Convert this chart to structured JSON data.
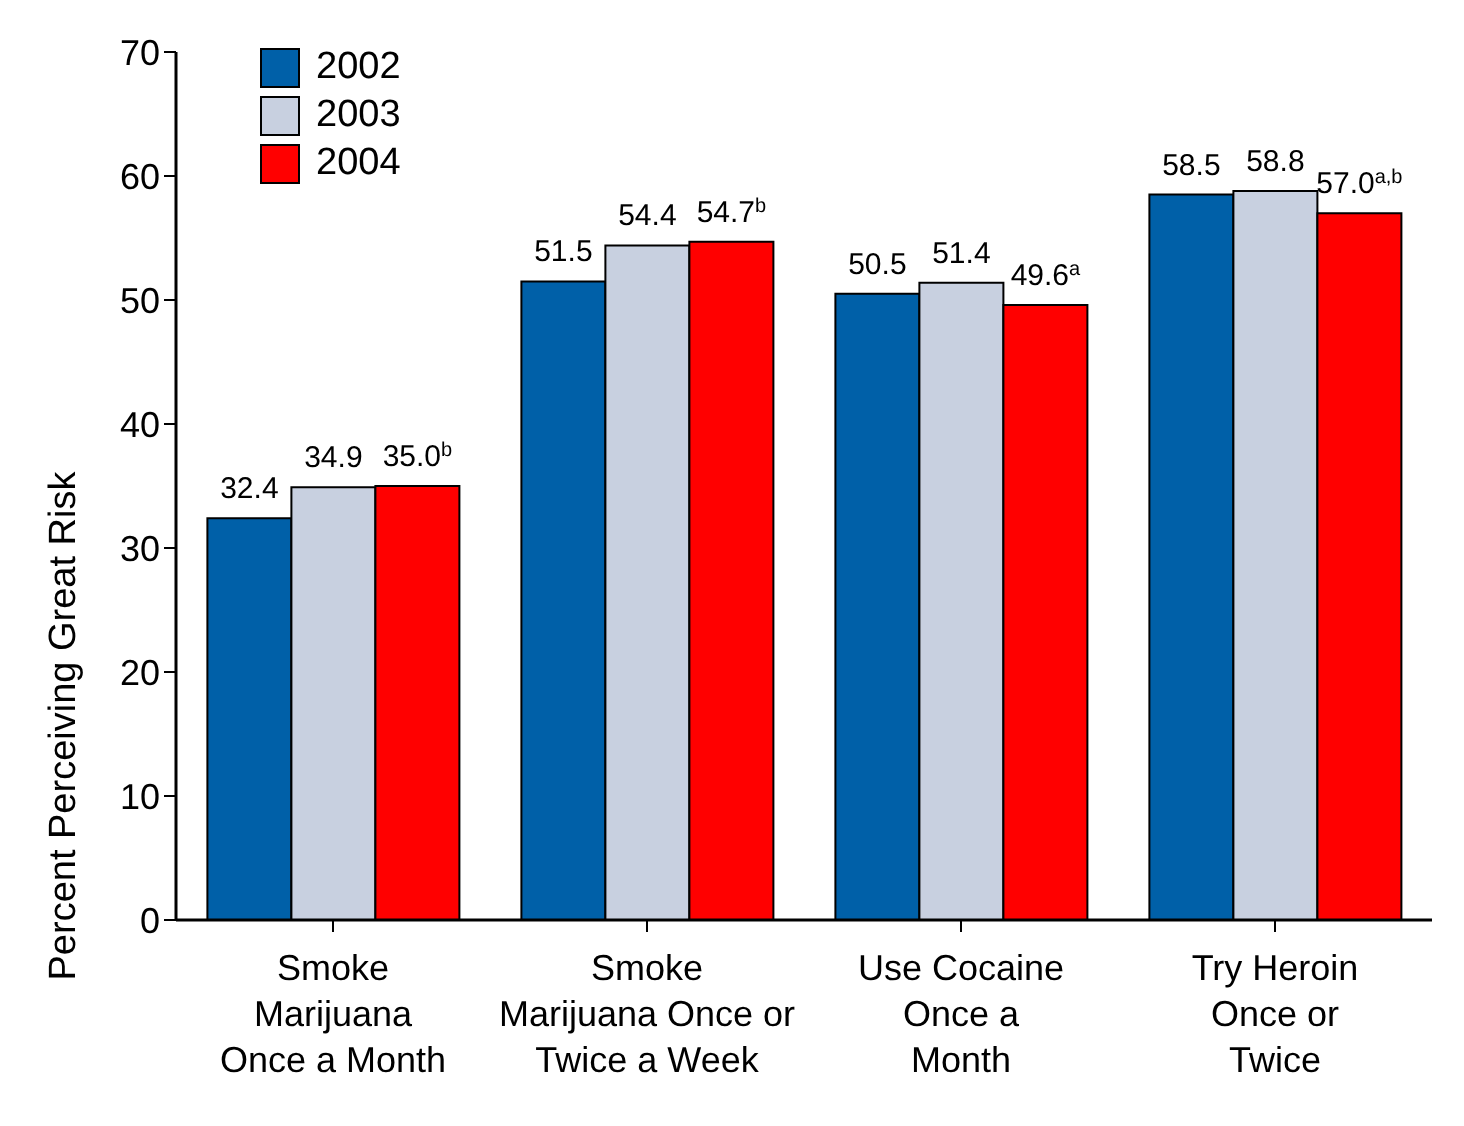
{
  "chart_data": {
    "type": "bar",
    "ylabel": "Percent Perceiving Great Risk",
    "categories": [
      "Smoke\nMarijuana\nOnce a Month",
      "Smoke\nMarijuana Once or\nTwice a Week",
      "Use Cocaine\nOnce a\nMonth",
      "Try Heroin\nOnce or\nTwice"
    ],
    "series": [
      {
        "name": "2002",
        "color": "#0060a8",
        "values": [
          32.4,
          51.5,
          50.5,
          58.5
        ],
        "value_labels": [
          "32.4",
          "51.5",
          "50.5",
          "58.5"
        ]
      },
      {
        "name": "2003",
        "color": "#c8d0e0",
        "values": [
          34.9,
          54.4,
          51.4,
          58.8
        ],
        "value_labels": [
          "34.9",
          "54.4",
          "51.4",
          "58.8"
        ]
      },
      {
        "name": "2004",
        "color": "#ff0000",
        "values": [
          35.0,
          54.7,
          49.6,
          57.0
        ],
        "value_labels": [
          "35.0$^{b}$",
          "54.7$^{b}$",
          "49.6$^{a}$",
          "57.0$^{a,b}$"
        ]
      }
    ],
    "ylim": [
      0,
      70
    ],
    "yticks": [
      0,
      10,
      20,
      30,
      40,
      50,
      60,
      70
    ],
    "grid": false,
    "legend": "top left"
  }
}
